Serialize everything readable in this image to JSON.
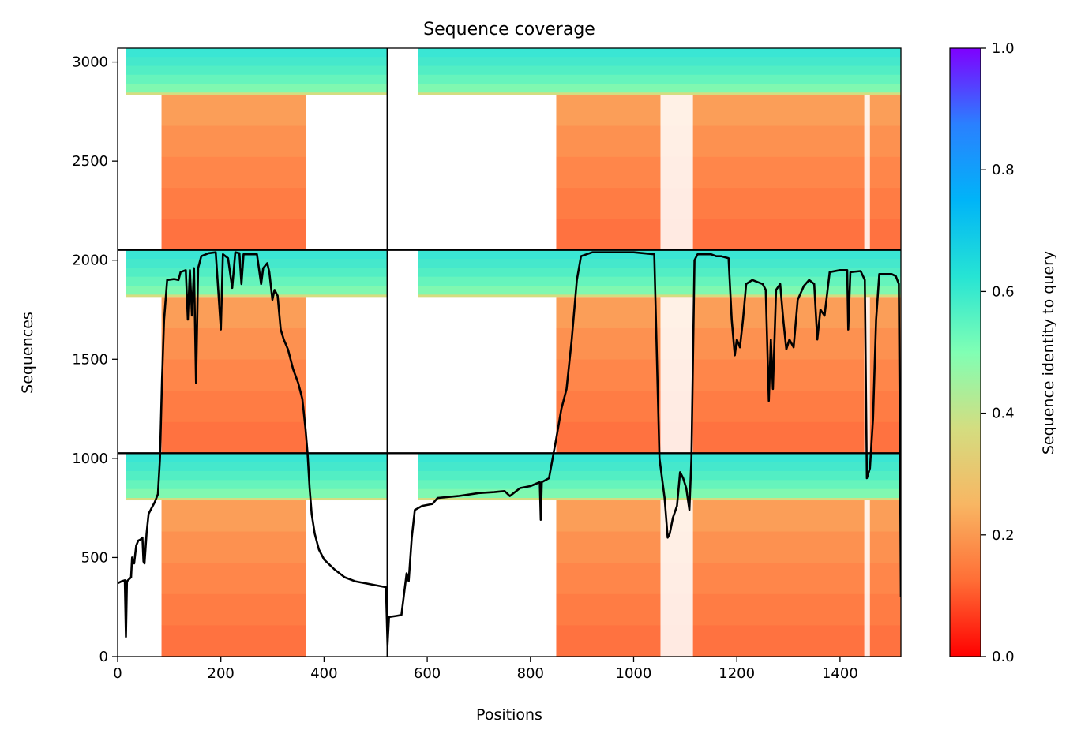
{
  "chart_data": {
    "type": "heatmap",
    "title": "Sequence coverage",
    "xlabel": "Positions",
    "ylabel": "Sequences",
    "xlim": [
      0,
      1518
    ],
    "ylim": [
      0,
      3070
    ],
    "x_ticks": [
      0,
      200,
      400,
      600,
      800,
      1000,
      1200,
      1400
    ],
    "y_ticks": [
      0,
      500,
      1000,
      1500,
      2000,
      2500,
      3000
    ],
    "colorbar": {
      "label": "Sequence identity to query",
      "range": [
        0.0,
        1.0
      ],
      "ticks": [
        0.0,
        0.2,
        0.4,
        0.6,
        0.8,
        1.0
      ],
      "colormap": "rainbow_r",
      "colors": [
        "#ff0000",
        "#ff6e36",
        "#f8b663",
        "#d4dd80",
        "#80ffb4",
        "#26e4d4",
        "#00b4f8",
        "#2a80ff",
        "#7f00ff"
      ]
    },
    "separators": {
      "vertical_x": [
        523
      ],
      "horizontal_y": [
        1026,
        2052
      ]
    },
    "blocks": [
      {
        "name": "lower-left",
        "x0": 0,
        "x1": 523,
        "y0": 0,
        "y1": 1026
      },
      {
        "name": "middle-left",
        "x0": 0,
        "x1": 523,
        "y0": 1026,
        "y1": 2052
      },
      {
        "name": "upper-left",
        "x0": 0,
        "x1": 523,
        "y0": 2052,
        "y1": 3070
      },
      {
        "name": "lower-right",
        "x0": 523,
        "x1": 1518,
        "y0": 0,
        "y1": 1026
      },
      {
        "name": "middle-right",
        "x0": 523,
        "x1": 1518,
        "y0": 1026,
        "y1": 2052
      },
      {
        "name": "upper-right",
        "x0": 523,
        "x1": 1518,
        "y0": 2052,
        "y1": 3070
      }
    ],
    "coverage_line": {
      "color": "#000000",
      "points": [
        [
          0,
          370
        ],
        [
          8,
          380
        ],
        [
          14,
          385
        ],
        [
          16,
          100
        ],
        [
          18,
          380
        ],
        [
          22,
          390
        ],
        [
          26,
          400
        ],
        [
          28,
          500
        ],
        [
          32,
          470
        ],
        [
          36,
          560
        ],
        [
          40,
          585
        ],
        [
          44,
          590
        ],
        [
          48,
          600
        ],
        [
          50,
          480
        ],
        [
          52,
          470
        ],
        [
          56,
          620
        ],
        [
          60,
          720
        ],
        [
          66,
          750
        ],
        [
          72,
          780
        ],
        [
          78,
          820
        ],
        [
          82,
          1000
        ],
        [
          86,
          1400
        ],
        [
          90,
          1700
        ],
        [
          96,
          1900
        ],
        [
          110,
          1905
        ],
        [
          118,
          1900
        ],
        [
          122,
          1940
        ],
        [
          132,
          1950
        ],
        [
          136,
          1700
        ],
        [
          140,
          1950
        ],
        [
          144,
          1720
        ],
        [
          148,
          1960
        ],
        [
          152,
          1380
        ],
        [
          156,
          1960
        ],
        [
          162,
          2020
        ],
        [
          176,
          2035
        ],
        [
          190,
          2040
        ],
        [
          200,
          1650
        ],
        [
          204,
          2030
        ],
        [
          214,
          2010
        ],
        [
          222,
          1860
        ],
        [
          228,
          2040
        ],
        [
          236,
          2035
        ],
        [
          240,
          1880
        ],
        [
          244,
          2030
        ],
        [
          270,
          2030
        ],
        [
          278,
          1880
        ],
        [
          282,
          1960
        ],
        [
          290,
          1985
        ],
        [
          294,
          1940
        ],
        [
          300,
          1800
        ],
        [
          304,
          1850
        ],
        [
          310,
          1820
        ],
        [
          316,
          1650
        ],
        [
          322,
          1600
        ],
        [
          330,
          1550
        ],
        [
          340,
          1450
        ],
        [
          350,
          1380
        ],
        [
          358,
          1300
        ],
        [
          364,
          1150
        ],
        [
          368,
          1026
        ],
        [
          372,
          850
        ],
        [
          376,
          720
        ],
        [
          382,
          620
        ],
        [
          390,
          540
        ],
        [
          400,
          490
        ],
        [
          420,
          440
        ],
        [
          440,
          400
        ],
        [
          460,
          380
        ],
        [
          480,
          370
        ],
        [
          500,
          360
        ],
        [
          520,
          350
        ],
        [
          523,
          60
        ],
        [
          526,
          200
        ],
        [
          540,
          205
        ],
        [
          550,
          210
        ],
        [
          560,
          420
        ],
        [
          564,
          380
        ],
        [
          570,
          600
        ],
        [
          576,
          740
        ],
        [
          590,
          760
        ],
        [
          610,
          770
        ],
        [
          620,
          800
        ],
        [
          660,
          810
        ],
        [
          700,
          825
        ],
        [
          730,
          830
        ],
        [
          750,
          835
        ],
        [
          760,
          810
        ],
        [
          780,
          850
        ],
        [
          800,
          860
        ],
        [
          818,
          880
        ],
        [
          820,
          690
        ],
        [
          822,
          880
        ],
        [
          836,
          900
        ],
        [
          850,
          1100
        ],
        [
          860,
          1250
        ],
        [
          870,
          1350
        ],
        [
          880,
          1600
        ],
        [
          890,
          1900
        ],
        [
          898,
          2020
        ],
        [
          920,
          2040
        ],
        [
          1000,
          2040
        ],
        [
          1040,
          2030
        ],
        [
          1050,
          1000
        ],
        [
          1060,
          800
        ],
        [
          1066,
          600
        ],
        [
          1070,
          620
        ],
        [
          1076,
          700
        ],
        [
          1084,
          760
        ],
        [
          1090,
          930
        ],
        [
          1096,
          900
        ],
        [
          1102,
          850
        ],
        [
          1108,
          740
        ],
        [
          1112,
          1000
        ],
        [
          1118,
          2000
        ],
        [
          1124,
          2030
        ],
        [
          1150,
          2030
        ],
        [
          1160,
          2020
        ],
        [
          1170,
          2020
        ],
        [
          1184,
          2010
        ],
        [
          1190,
          1700
        ],
        [
          1196,
          1520
        ],
        [
          1200,
          1600
        ],
        [
          1206,
          1560
        ],
        [
          1212,
          1700
        ],
        [
          1218,
          1880
        ],
        [
          1230,
          1900
        ],
        [
          1250,
          1880
        ],
        [
          1256,
          1850
        ],
        [
          1262,
          1290
        ],
        [
          1266,
          1600
        ],
        [
          1270,
          1350
        ],
        [
          1276,
          1850
        ],
        [
          1284,
          1880
        ],
        [
          1290,
          1700
        ],
        [
          1296,
          1550
        ],
        [
          1302,
          1600
        ],
        [
          1310,
          1560
        ],
        [
          1318,
          1800
        ],
        [
          1330,
          1870
        ],
        [
          1340,
          1900
        ],
        [
          1350,
          1880
        ],
        [
          1356,
          1600
        ],
        [
          1362,
          1750
        ],
        [
          1370,
          1720
        ],
        [
          1380,
          1940
        ],
        [
          1400,
          1950
        ],
        [
          1414,
          1950
        ],
        [
          1416,
          1650
        ],
        [
          1420,
          1940
        ],
        [
          1440,
          1945
        ],
        [
          1448,
          1900
        ],
        [
          1452,
          900
        ],
        [
          1458,
          950
        ],
        [
          1464,
          1200
        ],
        [
          1470,
          1700
        ],
        [
          1476,
          1930
        ],
        [
          1500,
          1930
        ],
        [
          1508,
          1920
        ],
        [
          1514,
          1880
        ],
        [
          1518,
          300
        ]
      ]
    }
  }
}
